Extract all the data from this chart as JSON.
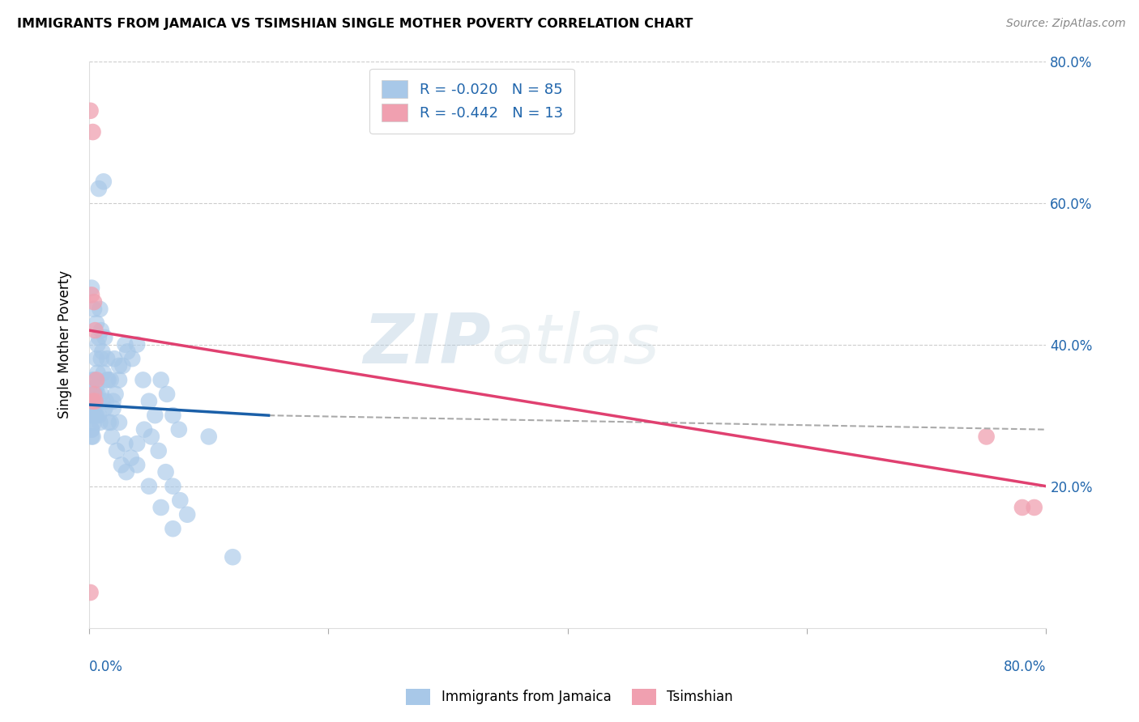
{
  "title": "IMMIGRANTS FROM JAMAICA VS TSIMSHIAN SINGLE MOTHER POVERTY CORRELATION CHART",
  "source": "Source: ZipAtlas.com",
  "ylabel": "Single Mother Poverty",
  "legend_entry1": "R = -0.020   N = 85",
  "legend_entry2": "R = -0.442   N = 13",
  "legend_label1": "Immigrants from Jamaica",
  "legend_label2": "Tsimshian",
  "blue_color": "#a8c8e8",
  "pink_color": "#f0a0b0",
  "blue_line_color": "#1a5fa8",
  "pink_line_color": "#e04070",
  "dashed_color": "#aaaaaa",
  "blue_scatter_x": [
    0.2,
    0.1,
    0.3,
    0.5,
    0.8,
    1.2,
    0.3,
    0.4,
    0.6,
    0.9,
    0.2,
    0.3,
    0.4,
    0.6,
    0.7,
    1.0,
    0.2,
    0.3,
    0.5,
    0.7,
    1.1,
    1.3,
    1.5,
    1.8,
    2.1,
    2.5,
    3.0,
    0.2,
    0.4,
    0.6,
    0.8,
    1.0,
    1.2,
    1.4,
    1.6,
    1.8,
    2.0,
    2.2,
    2.5,
    2.8,
    3.2,
    3.6,
    4.0,
    4.5,
    5.0,
    5.5,
    6.0,
    6.5,
    7.0,
    7.5,
    0.3,
    0.5,
    0.7,
    0.9,
    1.1,
    1.3,
    1.6,
    1.9,
    2.3,
    2.7,
    3.1,
    3.5,
    4.0,
    4.6,
    5.2,
    5.8,
    6.4,
    7.0,
    7.6,
    8.2,
    0.2,
    0.4,
    0.6,
    0.8,
    1.0,
    1.5,
    2.0,
    2.5,
    3.0,
    4.0,
    5.0,
    6.0,
    7.0,
    10.0,
    12.0
  ],
  "blue_scatter_y": [
    32,
    30,
    35,
    33,
    62,
    63,
    31,
    29,
    30,
    45,
    28,
    32,
    35,
    38,
    40,
    42,
    27,
    30,
    33,
    36,
    39,
    41,
    38,
    35,
    38,
    37,
    40,
    28,
    31,
    34,
    30,
    33,
    36,
    32,
    35,
    29,
    31,
    33,
    35,
    37,
    39,
    38,
    40,
    35,
    32,
    30,
    35,
    33,
    30,
    28,
    27,
    30,
    33,
    29,
    32,
    31,
    29,
    27,
    25,
    23,
    22,
    24,
    26,
    28,
    27,
    25,
    22,
    20,
    18,
    16,
    48,
    45,
    43,
    41,
    38,
    35,
    32,
    29,
    26,
    23,
    20,
    17,
    14,
    27,
    10
  ],
  "pink_scatter_x": [
    0.1,
    0.3,
    0.2,
    0.4,
    0.5,
    0.3,
    0.4,
    0.6,
    0.5,
    75.0,
    78.0,
    79.0,
    0.1
  ],
  "pink_scatter_y": [
    73,
    70,
    47,
    46,
    42,
    32,
    33,
    35,
    32,
    27,
    17,
    17,
    5
  ],
  "xlim": [
    0,
    80
  ],
  "ylim": [
    0,
    80
  ],
  "xtick_positions": [
    0,
    20,
    40,
    60,
    80
  ],
  "ytick_positions": [
    20,
    40,
    60,
    80
  ],
  "ytick_labels": [
    "20.0%",
    "40.0%",
    "60.0%",
    "80.0%"
  ]
}
